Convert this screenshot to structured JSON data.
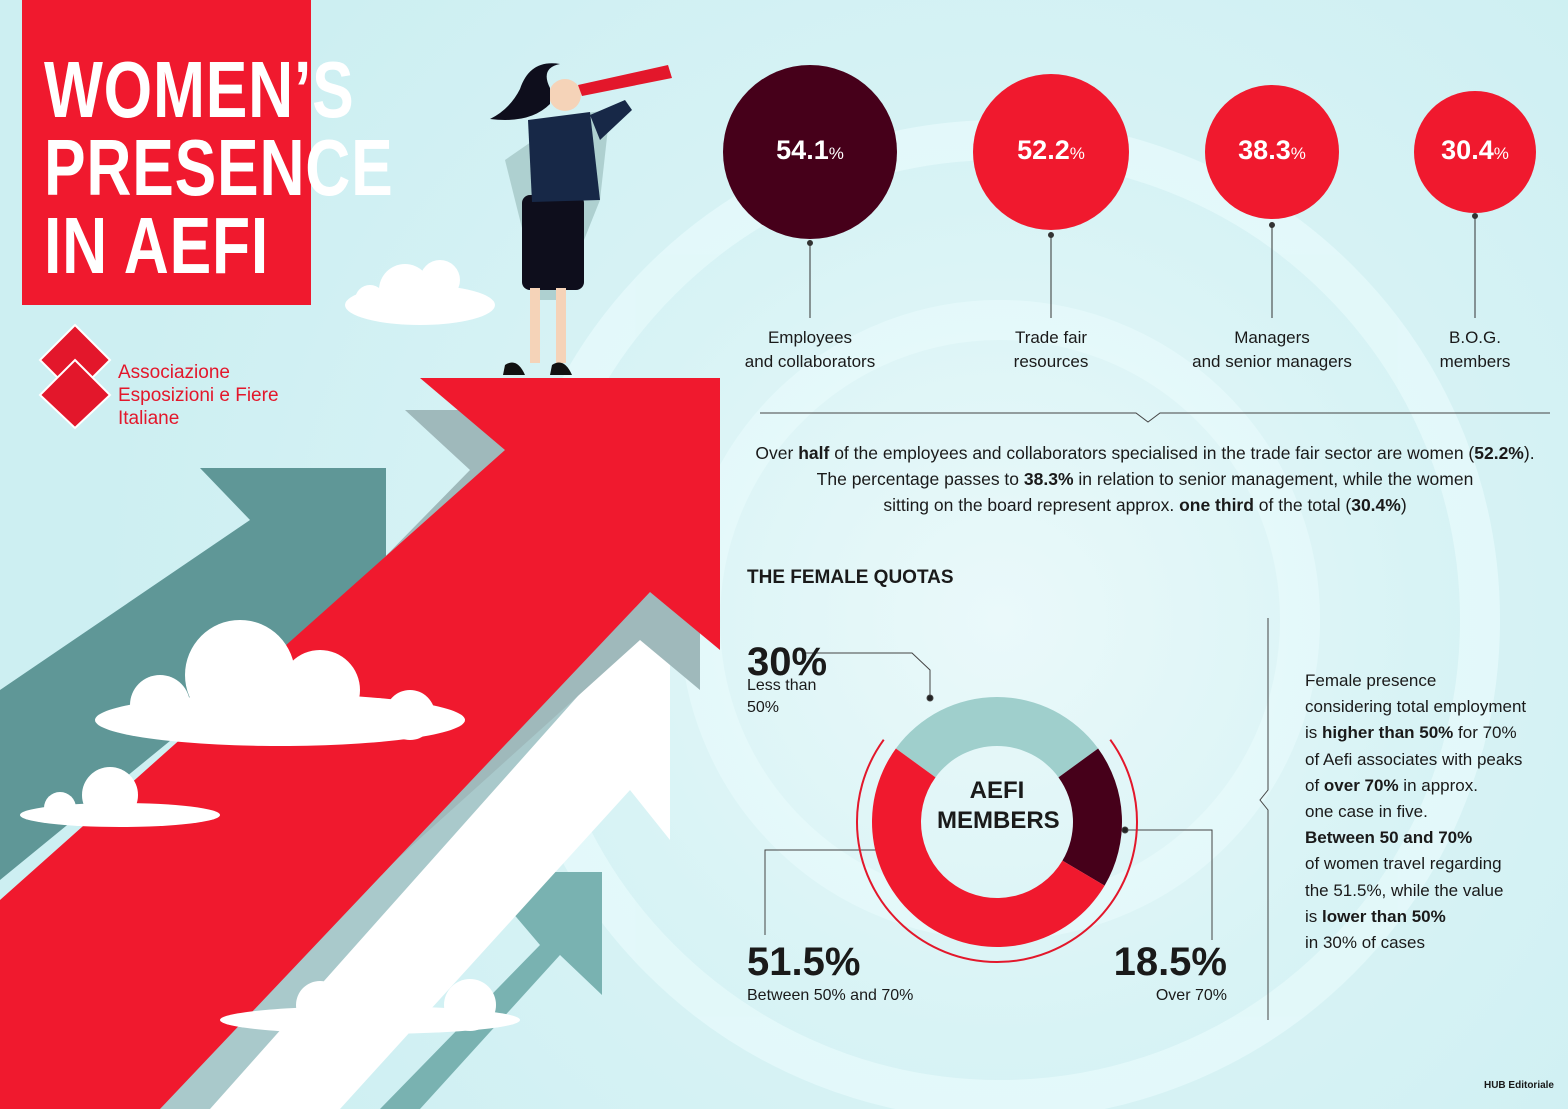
{
  "header": {
    "title_lines": [
      "WOMEN’S",
      "PRESENCE",
      "IN AEFI"
    ]
  },
  "logo": {
    "lines": [
      "Associazione",
      "Esposizioni e Fiere",
      "Italiane"
    ]
  },
  "stats": [
    {
      "value": "54.1",
      "unit": "%",
      "label_lines": [
        "Employees",
        "and collaborators"
      ],
      "color": "#46001a"
    },
    {
      "value": "52.2",
      "unit": "%",
      "label_lines": [
        "Trade fair",
        "resources"
      ],
      "color": "#f0192e"
    },
    {
      "value": "38.3",
      "unit": "%",
      "label_lines": [
        "Managers",
        "and senior managers"
      ],
      "color": "#f0192e"
    },
    {
      "value": "30.4",
      "unit": "%",
      "label_lines": [
        "B.O.G.",
        "members"
      ],
      "color": "#f0192e"
    }
  ],
  "summary": {
    "lines": [
      [
        {
          "text": "Over "
        },
        {
          "text": "half",
          "bold": true
        },
        {
          "text": " of the employees and collaborators specialised in the trade fair sector are women ("
        },
        {
          "text": "52.2%",
          "bold": true
        },
        {
          "text": ")."
        }
      ],
      [
        {
          "text": "The percentage passes to "
        },
        {
          "text": "38.3%",
          "bold": true
        },
        {
          "text": " in relation to senior management, while the women"
        }
      ],
      [
        {
          "text": "sitting on the board represent approx. "
        },
        {
          "text": "one third",
          "bold": true
        },
        {
          "text": " of the total ("
        },
        {
          "text": "30.4%",
          "bold": true
        },
        {
          "text": ")"
        }
      ]
    ]
  },
  "chart_data": {
    "type": "donut",
    "title": "THE FEMALE QUOTAS",
    "center_label": [
      "AEFI",
      "MEMBERS"
    ],
    "categories": [
      "Less than 50%",
      "Between 50% and 70%",
      "Over 70%"
    ],
    "values": [
      30,
      51.5,
      18.5
    ],
    "value_labels": [
      "30%",
      "51.5%",
      "18.5%"
    ],
    "colors": [
      "#9fcfcc",
      "#f0192e",
      "#46001a"
    ]
  },
  "side_note": {
    "lines": [
      [
        {
          "text": "Female presence"
        }
      ],
      [
        {
          "text": "considering total employment"
        }
      ],
      [
        {
          "text": "is "
        },
        {
          "text": "higher than 50%",
          "bold": true
        },
        {
          "text": " for 70%"
        }
      ],
      [
        {
          "text": "of Aefi associates with peaks"
        }
      ],
      [
        {
          "text": "of "
        },
        {
          "text": "over 70%",
          "bold": true
        },
        {
          "text": " in approx."
        }
      ],
      [
        {
          "text": "one case in five."
        }
      ],
      [
        {
          "text": "Between 50 and 70%",
          "bold": true
        }
      ],
      [
        {
          "text": "of women travel regarding"
        }
      ],
      [
        {
          "text": "the 51.5%, while the value"
        }
      ],
      [
        {
          "text": "is "
        },
        {
          "text": "lower than 50%",
          "bold": true
        }
      ],
      [
        {
          "text": "in 30% of cases"
        }
      ]
    ]
  },
  "footer": {
    "credit": "HUB Editoriale"
  }
}
